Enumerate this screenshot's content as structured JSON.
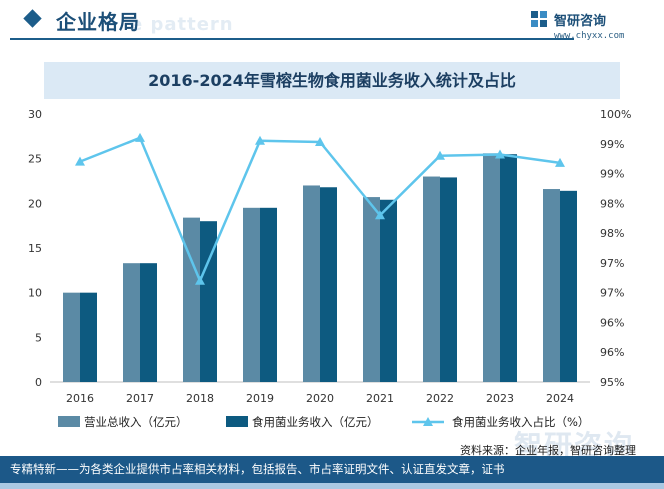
{
  "header": {
    "section_title": "企业格局",
    "watermark_text": "e pattern",
    "brand": {
      "name": "智研咨询",
      "url": "www.chyxx.com"
    }
  },
  "chart_data": {
    "type": "bar",
    "title": "2016-2024年雪榕生物食用菌业务收入统计及占比",
    "categories": [
      "2016",
      "2017",
      "2018",
      "2019",
      "2020",
      "2021",
      "2022",
      "2023",
      "2024"
    ],
    "series": [
      {
        "name": "营业总收入（亿元）",
        "kind": "bar",
        "axis": "left",
        "color": "#5b8aa5",
        "values": [
          10.0,
          13.3,
          18.4,
          19.5,
          22.0,
          20.7,
          23.0,
          25.6,
          21.6
        ]
      },
      {
        "name": "食用菌业务收入（亿元）",
        "kind": "bar",
        "axis": "left",
        "color": "#0d5a80",
        "values": [
          10.0,
          13.3,
          18.0,
          19.5,
          21.8,
          20.4,
          22.9,
          25.5,
          21.4
        ]
      },
      {
        "name": "食用菌业务收入占比（%）",
        "kind": "line",
        "axis": "right",
        "color": "#5ec5ec",
        "values": [
          98.7,
          99.1,
          96.7,
          99.05,
          99.03,
          97.8,
          98.8,
          98.82,
          98.68
        ]
      }
    ],
    "y_left": {
      "min": 0,
      "max": 30,
      "ticks": [
        0,
        5,
        10,
        15,
        20,
        25,
        30
      ]
    },
    "y_right": {
      "min": 95,
      "max": 99.5,
      "ticks": [
        95,
        95.5,
        96,
        96.5,
        97,
        97.5,
        98,
        98.5,
        99,
        99.5
      ],
      "tick_labels": [
        "95%",
        "96%",
        "96%",
        "97%",
        "97%",
        "98%",
        "98%",
        "99%",
        "99%",
        "100%"
      ]
    },
    "grid": false,
    "legend_position": "bottom"
  },
  "footer": {
    "source": "资料来源：企业年报，智研咨询整理",
    "watermark": "智研咨询",
    "tagline": "专精特新——为各类企业提供市占率相关材料，包括报告、市占率证明文件、认证直发文章，证书"
  }
}
